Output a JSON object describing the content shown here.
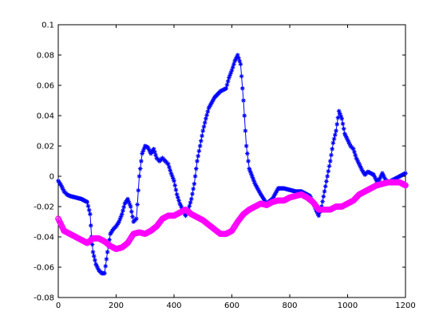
{
  "chart_data": {
    "type": "scatter",
    "title": "",
    "xlabel": "",
    "ylabel": "",
    "xlim": [
      0,
      1200
    ],
    "ylim": [
      -0.08,
      0.1
    ],
    "xticks": [
      0,
      200,
      400,
      600,
      800,
      1000,
      1200
    ],
    "yticks": [
      -0.08,
      -0.06,
      -0.04,
      -0.02,
      0,
      0.02,
      0.04,
      0.06,
      0.08,
      0.1
    ],
    "xtick_labels": [
      "0",
      "200",
      "400",
      "600",
      "800",
      "1000",
      "1200"
    ],
    "ytick_labels": [
      "-0.08",
      "-0.06",
      "-0.04",
      "-0.02",
      "0",
      "0.02",
      "0.04",
      "0.06",
      "0.08",
      "0.1"
    ],
    "grid": false,
    "legend": "none",
    "series": [
      {
        "color": "#0000ff",
        "marker": "star",
        "line": true,
        "x": [
          0,
          10,
          20,
          30,
          40,
          60,
          80,
          100,
          110,
          115,
          120,
          130,
          140,
          150,
          160,
          170,
          180,
          190,
          200,
          210,
          220,
          230,
          240,
          250,
          260,
          270,
          280,
          290,
          300,
          310,
          320,
          330,
          340,
          350,
          360,
          370,
          380,
          390,
          400,
          410,
          420,
          430,
          440,
          450,
          460,
          470,
          480,
          490,
          500,
          510,
          520,
          540,
          560,
          570,
          580,
          590,
          600,
          610,
          620,
          630,
          640,
          650,
          660,
          680,
          700,
          720,
          740,
          760,
          780,
          800,
          820,
          840,
          860,
          870,
          880,
          890,
          900,
          910,
          920,
          930,
          940,
          950,
          960,
          970,
          980,
          990,
          1000,
          1010,
          1020,
          1030,
          1040,
          1050,
          1060,
          1070,
          1080,
          1090,
          1100,
          1110,
          1120,
          1130,
          1140,
          1150,
          1160,
          1170,
          1180,
          1190,
          1200
        ],
        "y": [
          -0.003,
          -0.006,
          -0.01,
          -0.012,
          -0.013,
          -0.014,
          -0.015,
          -0.017,
          -0.025,
          -0.04,
          -0.05,
          -0.058,
          -0.062,
          -0.064,
          -0.064,
          -0.05,
          -0.038,
          -0.035,
          -0.033,
          -0.03,
          -0.025,
          -0.018,
          -0.015,
          -0.02,
          -0.03,
          -0.028,
          0,
          0.015,
          0.02,
          0.019,
          0.015,
          0.018,
          0.012,
          0.01,
          0.012,
          0.01,
          0.008,
          0.002,
          -0.003,
          -0.012,
          -0.018,
          -0.022,
          -0.026,
          -0.022,
          -0.015,
          -0.005,
          0.01,
          0.02,
          0.03,
          0.038,
          0.045,
          0.052,
          0.056,
          0.057,
          0.058,
          0.065,
          0.07,
          0.076,
          0.08,
          0.074,
          0.05,
          0.02,
          0.005,
          -0.005,
          -0.012,
          -0.018,
          -0.015,
          -0.008,
          -0.008,
          -0.009,
          -0.01,
          -0.01,
          -0.012,
          -0.013,
          -0.017,
          -0.022,
          -0.026,
          -0.02,
          -0.01,
          0,
          0.01,
          0.022,
          0.03,
          0.043,
          0.038,
          0.028,
          0.024,
          0.02,
          0.018,
          0.012,
          0.008,
          0.004,
          0.001,
          0.003,
          0.002,
          0.001,
          -0.003,
          -0.002,
          0.002,
          -0.002,
          -0.004,
          -0.003,
          -0.002,
          -0.001,
          0,
          0.001,
          0.002
        ]
      },
      {
        "color": "#ff00ff",
        "marker": "circle",
        "line": true,
        "x": [
          0,
          20,
          40,
          60,
          80,
          100,
          120,
          140,
          160,
          180,
          200,
          220,
          240,
          260,
          280,
          300,
          320,
          340,
          360,
          380,
          400,
          420,
          440,
          460,
          480,
          500,
          520,
          540,
          560,
          580,
          600,
          620,
          640,
          660,
          680,
          700,
          720,
          740,
          760,
          780,
          800,
          820,
          840,
          860,
          880,
          900,
          920,
          940,
          960,
          980,
          1000,
          1020,
          1040,
          1060,
          1080,
          1100,
          1120,
          1140,
          1160,
          1180,
          1200
        ],
        "y": [
          -0.028,
          -0.036,
          -0.038,
          -0.04,
          -0.042,
          -0.044,
          -0.041,
          -0.041,
          -0.043,
          -0.046,
          -0.048,
          -0.047,
          -0.044,
          -0.038,
          -0.037,
          -0.038,
          -0.036,
          -0.033,
          -0.028,
          -0.026,
          -0.026,
          -0.024,
          -0.022,
          -0.025,
          -0.027,
          -0.029,
          -0.032,
          -0.035,
          -0.038,
          -0.038,
          -0.036,
          -0.03,
          -0.025,
          -0.022,
          -0.02,
          -0.018,
          -0.019,
          -0.017,
          -0.016,
          -0.016,
          -0.014,
          -0.013,
          -0.012,
          -0.014,
          -0.017,
          -0.022,
          -0.022,
          -0.022,
          -0.02,
          -0.02,
          -0.018,
          -0.016,
          -0.012,
          -0.01,
          -0.008,
          -0.006,
          -0.005,
          -0.004,
          -0.004,
          -0.004,
          -0.006
        ]
      }
    ]
  }
}
